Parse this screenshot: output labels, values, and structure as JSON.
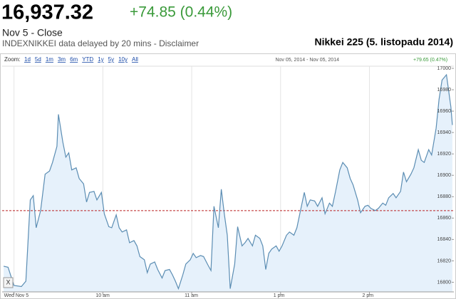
{
  "header": {
    "price": "16,937.32",
    "change": "+74.85 (0.44%)",
    "date": "Nov 5 - Close",
    "disclaimer": "INDEXNIKKEI data delayed by 20 mins - Disclaimer",
    "chart_label": "Nikkei 225 (5. listopadu 2014)"
  },
  "toolbar": {
    "zoom_label": "Zoom:",
    "zoom_options": [
      "1d",
      "5d",
      "1m",
      "3m",
      "6m",
      "YTD",
      "1y",
      "5y",
      "10y",
      "All"
    ],
    "range": "Nov 05, 2014 - Nov 05, 2014",
    "range_change": "+79.65 (0.47%)",
    "close_button": "X"
  },
  "chart_data": {
    "type": "area",
    "color": "#5b8db3",
    "fill": "#e6f1fb",
    "x": [
      -7,
      -4,
      0,
      5,
      8,
      11,
      13,
      15,
      18,
      21,
      24,
      26,
      29,
      30,
      33,
      35,
      37,
      39,
      42,
      44,
      47,
      49,
      51,
      54,
      56,
      59,
      61,
      64,
      66,
      69,
      71,
      73,
      76,
      78,
      81,
      83,
      85,
      88,
      90,
      92,
      95,
      97,
      100,
      102,
      105,
      107,
      109,
      111,
      114,
      116,
      119,
      121,
      123,
      126,
      128,
      131,
      133,
      135,
      138,
      140,
      142,
      144,
      146,
      149,
      151,
      154,
      156,
      158,
      161,
      163,
      166,
      168,
      170,
      172,
      174,
      177,
      179,
      181,
      184,
      186,
      189,
      191,
      193,
      196,
      198,
      200,
      203,
      205,
      208,
      210,
      213,
      215,
      217,
      220,
      222,
      225,
      227,
      229,
      232,
      234,
      237,
      239,
      241,
      244,
      246,
      249,
      251,
      253,
      256,
      258,
      261,
      263,
      265,
      268,
      270,
      273,
      275,
      277,
      280,
      282,
      285,
      287,
      289,
      292,
      295,
      296
    ],
    "values": [
      16815,
      16814,
      16797,
      16796,
      16801,
      16877,
      16881,
      16851,
      16867,
      16901,
      16904,
      16912,
      16927,
      16957,
      16931,
      16917,
      16921,
      16905,
      16907,
      16897,
      16892,
      16875,
      16884,
      16885,
      16877,
      16884,
      16864,
      16852,
      16851,
      16863,
      16851,
      16847,
      16849,
      16837,
      16839,
      16834,
      16824,
      16821,
      16809,
      16817,
      16819,
      16812,
      16804,
      16811,
      16812,
      16807,
      16801,
      16794,
      16807,
      16817,
      16821,
      16827,
      16823,
      16825,
      16824,
      16816,
      16811,
      16871,
      16851,
      16887,
      16864,
      16844,
      16794,
      16817,
      16852,
      16834,
      16837,
      16841,
      16834,
      16844,
      16841,
      16834,
      16812,
      16827,
      16831,
      16834,
      16829,
      16834,
      16844,
      16847,
      16844,
      16851,
      16864,
      16884,
      16871,
      16877,
      16876,
      16871,
      16879,
      16864,
      16874,
      16871,
      16884,
      16905,
      16912,
      16907,
      16897,
      16891,
      16877,
      16865,
      16871,
      16872,
      16869,
      16867,
      16869,
      16874,
      16872,
      16879,
      16883,
      16879,
      16885,
      16903,
      16894,
      16901,
      16907,
      16924,
      16914,
      16912,
      16924,
      16919,
      16944,
      16971,
      16989,
      16994,
      16964,
      16947
    ],
    "reference_line": 16867,
    "reference_color": "#b22",
    "xlim": [
      -8,
      297
    ],
    "ylim": [
      16791,
      17002
    ],
    "xticks": [
      {
        "value": 0,
        "label": "Wed Nov 5"
      },
      {
        "value": 60,
        "label": "10 am"
      },
      {
        "value": 120,
        "label": "11 am"
      },
      {
        "value": 180,
        "label": "1 pm"
      },
      {
        "value": 240,
        "label": "2 pm"
      }
    ],
    "yticks": [
      16800,
      16820,
      16840,
      16860,
      16880,
      16900,
      16920,
      16940,
      16960,
      16980,
      17000
    ],
    "grid": true
  }
}
